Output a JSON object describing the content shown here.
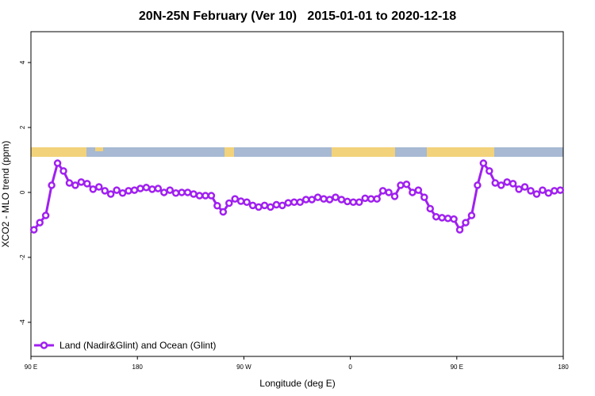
{
  "chart_data": {
    "type": "line",
    "title": "20N-25N February (Ver 10)   2015-01-01 to 2020-12-18",
    "x_label": "Longitude (deg E)",
    "y_label": "XCO2 - MLO trend (ppm)",
    "xlim": [
      90,
      540
    ],
    "ylim": [
      -5.05,
      4.95
    ],
    "xticks": [
      {
        "value": 90,
        "label": "90 E"
      },
      {
        "value": 180,
        "label": "180"
      },
      {
        "value": 270,
        "label": "90 W"
      },
      {
        "value": 360,
        "label": "0"
      },
      {
        "value": 450,
        "label": "90 E"
      },
      {
        "value": 540,
        "label": "180"
      }
    ],
    "yticks": [
      -4,
      -2,
      0,
      2,
      4
    ],
    "legend": "bottom-left",
    "x": [
      92.5,
      97.5,
      102.5,
      107.5,
      112.5,
      117.5,
      122.5,
      127.5,
      132.5,
      137.5,
      142.5,
      147.5,
      152.5,
      157.5,
      162.5,
      167.5,
      172.5,
      177.5,
      182.5,
      187.5,
      192.5,
      197.5,
      202.5,
      207.5,
      212.5,
      217.5,
      222.5,
      227.5,
      232.5,
      237.5,
      242.5,
      247.5,
      252.5,
      257.5,
      262.5,
      267.5,
      272.5,
      277.5,
      282.5,
      287.5,
      292.5,
      297.5,
      302.5,
      307.5,
      312.5,
      317.5,
      322.5,
      327.5,
      332.5,
      337.5,
      342.5,
      347.5,
      352.5,
      357.5,
      362.5,
      367.5,
      372.5,
      377.5,
      382.5,
      387.5,
      392.5,
      397.5,
      402.5,
      407.5,
      412.5,
      417.5,
      422.5,
      427.5,
      432.5,
      437.5,
      442.5,
      447.5,
      452.5,
      457.5,
      462.5,
      467.5,
      472.5,
      477.5,
      482.5,
      487.5,
      492.5,
      497.5,
      502.5,
      507.5,
      512.5,
      517.5,
      522.5,
      527.5,
      532.5,
      537.5
    ],
    "series": [
      {
        "name": "Land (Nadir&Glint) and Ocean (Glint)",
        "color": "#a020f0",
        "values": [
          -1.15,
          -0.93,
          -0.71,
          0.22,
          0.9,
          0.66,
          0.29,
          0.22,
          0.32,
          0.27,
          0.1,
          0.17,
          0.05,
          -0.05,
          0.07,
          -0.02,
          0.05,
          0.07,
          0.12,
          0.15,
          0.1,
          0.12,
          0,
          0.07,
          -0.02,
          0,
          0,
          -0.05,
          -0.1,
          -0.1,
          -0.1,
          -0.41,
          -0.6,
          -0.33,
          -0.2,
          -0.27,
          -0.3,
          -0.4,
          -0.45,
          -0.4,
          -0.45,
          -0.38,
          -0.4,
          -0.32,
          -0.3,
          -0.3,
          -0.22,
          -0.22,
          -0.15,
          -0.2,
          -0.22,
          -0.15,
          -0.22,
          -0.28,
          -0.3,
          -0.3,
          -0.18,
          -0.2,
          -0.2,
          0.05,
          0.0,
          -0.12,
          0.22,
          0.25,
          0.0,
          0.07,
          -0.15,
          -0.5,
          -0.75,
          -0.78,
          -0.8,
          -0.82,
          -1.15,
          -0.93,
          -0.71,
          0.22,
          0.9,
          0.66,
          0.29,
          0.22,
          0.32,
          0.27,
          0.1,
          0.17,
          0.05,
          -0.05,
          0.07,
          -0.02,
          0.05,
          0.07
        ]
      }
    ]
  }
}
